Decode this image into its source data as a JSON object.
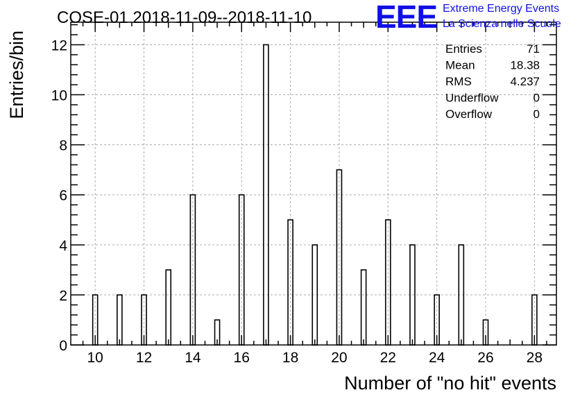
{
  "chart_data": {
    "type": "bar",
    "title": "COSE-01 2018-11-09--2018-11-10",
    "xlabel": "Number of \"no hit\" events",
    "ylabel": "Entries/bin",
    "xlim": [
      9.0,
      28.9
    ],
    "ylim": [
      0,
      12.9
    ],
    "bin_width": 0.2,
    "grid": true,
    "x": [
      10,
      11,
      12,
      13,
      14,
      15,
      16,
      17,
      18,
      19,
      20,
      21,
      22,
      23,
      24,
      25,
      26,
      27,
      28
    ],
    "values": [
      2,
      2,
      2,
      3,
      6,
      1,
      6,
      12,
      5,
      4,
      7,
      3,
      5,
      4,
      2,
      4,
      1,
      0,
      2
    ],
    "x_ticks": [
      10,
      12,
      14,
      16,
      18,
      20,
      22,
      24,
      26,
      28
    ],
    "y_ticks": [
      0,
      2,
      4,
      6,
      8,
      10,
      12
    ],
    "line_color": "#000000",
    "stats": [
      {
        "label": "Entries",
        "value": "71"
      },
      {
        "label": "Mean",
        "value": "18.38"
      },
      {
        "label": "RMS",
        "value": "4.237"
      },
      {
        "label": "Underflow",
        "value": "0"
      },
      {
        "label": "Overflow",
        "value": "0"
      }
    ]
  },
  "logo": {
    "mark": "EEE",
    "line1": "Extreme Energy Events",
    "line2": "La Scienza nelle Scuole",
    "color": "#1010e6"
  }
}
